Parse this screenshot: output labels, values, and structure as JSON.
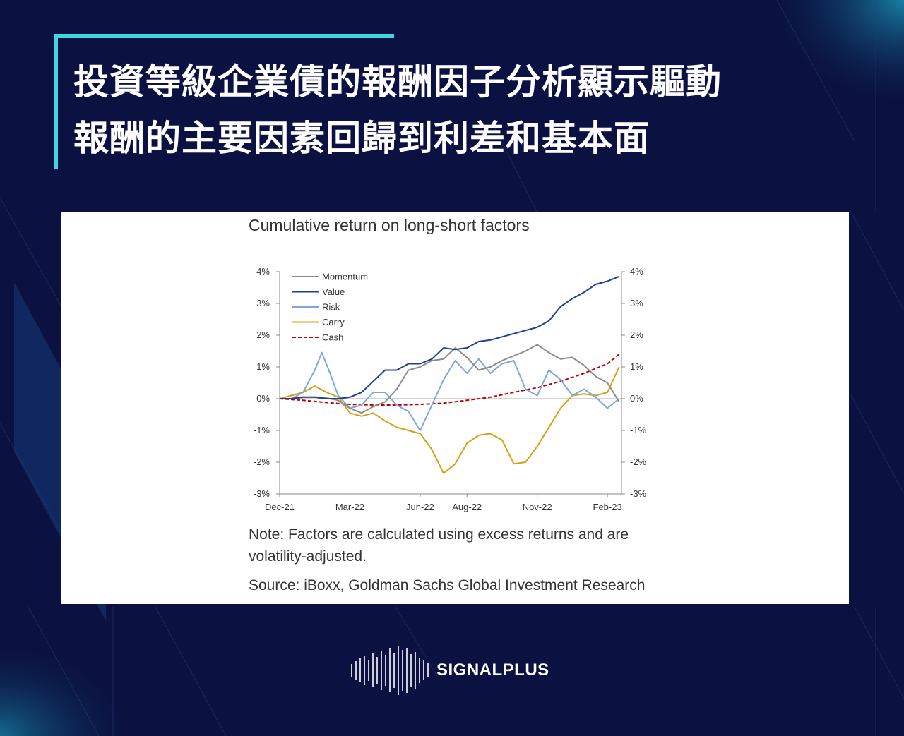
{
  "headline": {
    "line1": "投資等級企業債的報酬因子分析顯示驅動",
    "line2": "報酬的主要因素回歸到利差和基本面"
  },
  "brand": {
    "name": "SIGNALPLUS",
    "icon": "waveform-icon"
  },
  "colors": {
    "background": "#0b1140",
    "accent": "#3fd6e0",
    "momentum": "#8c8c8c",
    "value": "#1f3f8f",
    "risk": "#7ea7de",
    "carry": "#d4a017",
    "cash": "#c00000"
  },
  "chart_data": {
    "type": "line",
    "title": "Cumulative return on long-short factors",
    "note": "Note: Factors are calculated using excess returns and are volatility-adjusted.",
    "source": "Source: iBoxx, Goldman Sachs Global Investment Research",
    "x_tick_labels": [
      "Dec-21",
      "Mar-22",
      "Jun-22",
      "Aug-22",
      "Nov-22",
      "Feb-23"
    ],
    "y_tick_labels": [
      "4%",
      "3%",
      "2%",
      "1%",
      "0%",
      "-1%",
      "-2%",
      "-3%"
    ],
    "ylim": [
      -3,
      4
    ],
    "x_units": "months since Dec-21",
    "xlim": [
      0,
      14.6
    ],
    "grid": false,
    "legend_position": "top-left",
    "series": [
      {
        "name": "Momentum",
        "style": "solid",
        "x": [
          0,
          0.5,
          1,
          1.5,
          2,
          2.5,
          3,
          3.5,
          4,
          4.5,
          5,
          5.5,
          6,
          6.5,
          7,
          7.5,
          8,
          8.5,
          9,
          9.5,
          10,
          10.5,
          11,
          11.5,
          12,
          12.5,
          13,
          13.5,
          14,
          14.5
        ],
        "values": [
          0,
          0,
          0.05,
          0.05,
          0.02,
          -0.05,
          -0.3,
          -0.45,
          -0.25,
          -0.1,
          0.3,
          0.9,
          1,
          1.2,
          1.25,
          1.6,
          1.3,
          0.9,
          1.0,
          1.2,
          1.35,
          1.5,
          1.7,
          1.45,
          1.25,
          1.3,
          1.05,
          0.7,
          0.5,
          -0.1
        ]
      },
      {
        "name": "Value",
        "style": "solid",
        "x": [
          0,
          0.5,
          1,
          1.5,
          2,
          2.5,
          3,
          3.5,
          4,
          4.5,
          5,
          5.5,
          6,
          6.5,
          7,
          7.5,
          8,
          8.5,
          9,
          9.5,
          10,
          10.5,
          11,
          11.5,
          12,
          12.5,
          13,
          13.5,
          14,
          14.5
        ],
        "values": [
          0,
          0,
          0.05,
          0.05,
          0.0,
          0.0,
          0.05,
          0.2,
          0.55,
          0.9,
          0.9,
          1.1,
          1.1,
          1.25,
          1.6,
          1.55,
          1.6,
          1.8,
          1.85,
          1.95,
          2.05,
          2.15,
          2.25,
          2.45,
          2.9,
          3.15,
          3.35,
          3.6,
          3.7,
          3.85
        ]
      },
      {
        "name": "Risk",
        "style": "solid",
        "x": [
          0,
          0.5,
          1,
          1.5,
          1.8,
          2.1,
          2.5,
          3,
          3.5,
          4,
          4.5,
          5,
          5.5,
          6,
          6.5,
          7,
          7.5,
          8,
          8.5,
          9,
          9.5,
          10,
          10.5,
          11,
          11.5,
          12,
          12.5,
          13,
          13.5,
          14,
          14.5
        ],
        "values": [
          0,
          0,
          0.2,
          0.9,
          1.45,
          0.9,
          0.1,
          -0.3,
          -0.2,
          0.2,
          0.2,
          -0.2,
          -0.4,
          -1.0,
          -0.2,
          0.6,
          1.2,
          0.8,
          1.25,
          0.8,
          1.1,
          1.2,
          0.3,
          0.1,
          0.9,
          0.6,
          0.1,
          0.3,
          0.05,
          -0.3,
          0.0
        ]
      },
      {
        "name": "Carry",
        "style": "solid",
        "x": [
          0,
          0.5,
          1,
          1.5,
          2,
          2.5,
          3,
          3.5,
          4,
          4.5,
          5,
          5.5,
          6,
          6.5,
          7,
          7.5,
          8,
          8.5,
          9,
          9.5,
          10,
          10.5,
          11,
          11.5,
          12,
          12.5,
          13,
          13.5,
          14,
          14.5
        ],
        "values": [
          0,
          0.1,
          0.2,
          0.4,
          0.2,
          0.05,
          -0.45,
          -0.55,
          -0.45,
          -0.7,
          -0.9,
          -1.0,
          -1.1,
          -1.6,
          -2.35,
          -2.05,
          -1.4,
          -1.15,
          -1.1,
          -1.3,
          -2.05,
          -2.0,
          -1.5,
          -0.9,
          -0.3,
          0.1,
          0.15,
          0.1,
          0.2,
          1.0
        ]
      },
      {
        "name": "Cash",
        "style": "dashed",
        "x": [
          0,
          1,
          2,
          3,
          4,
          5,
          6,
          7,
          8,
          9,
          10,
          11,
          12,
          13,
          14,
          14.5
        ],
        "values": [
          0,
          -0.05,
          -0.12,
          -0.18,
          -0.2,
          -0.2,
          -0.18,
          -0.14,
          -0.05,
          0.05,
          0.2,
          0.35,
          0.55,
          0.8,
          1.1,
          1.4
        ]
      }
    ]
  }
}
